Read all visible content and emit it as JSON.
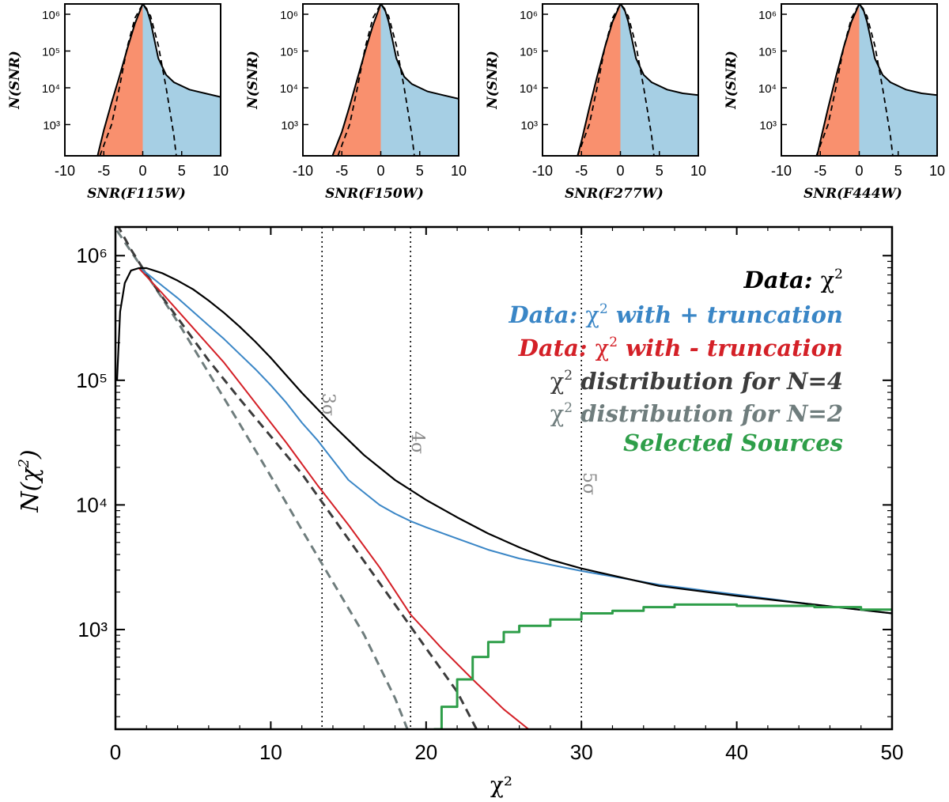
{
  "chart_data": [
    {
      "type": "area",
      "panel": "SNR(F115W)",
      "xlabel": "SNR(F115W)",
      "ylabel": "N(SNR)",
      "xlim": [
        -10,
        10
      ],
      "ylim_log10": [
        2.15,
        6.28
      ],
      "xticks": [
        -10,
        -5,
        0,
        5,
        10
      ],
      "xtick_labels": [
        "-10",
        "-5",
        "0",
        "5",
        "10"
      ],
      "yticks_log10": [
        3,
        4,
        5,
        6
      ],
      "ytick_labels": [
        "10³",
        "10⁴",
        "10⁵",
        "10⁶"
      ],
      "series": [
        {
          "name": "data (negative SNR, filled)",
          "color": "#f9906e",
          "fill": true,
          "x": [
            -5.8,
            -5,
            -4,
            -3,
            -2,
            -1,
            0
          ],
          "log10_y": [
            2.15,
            2.85,
            3.6,
            4.3,
            5.05,
            5.75,
            6.28
          ]
        },
        {
          "name": "data (positive SNR, filled)",
          "color": "#a6cfe4",
          "fill": true,
          "x": [
            0,
            0.5,
            1,
            1.5,
            2,
            3,
            4,
            6,
            8,
            10
          ],
          "log10_y": [
            6.28,
            6.15,
            5.8,
            5.3,
            4.8,
            4.35,
            4.15,
            3.95,
            3.85,
            3.75
          ]
        },
        {
          "name": "Gaussian fit",
          "color": "#000000",
          "style": "dashed",
          "x": [
            -5.5,
            -4,
            -3,
            -2,
            -1,
            0,
            1,
            2,
            3,
            4,
            4.3
          ],
          "log10_y": [
            2.15,
            3.0,
            4.0,
            5.1,
            5.9,
            6.28,
            5.95,
            5.15,
            4.0,
            2.7,
            2.15
          ]
        }
      ]
    },
    {
      "type": "area",
      "panel": "SNR(F150W)",
      "xlabel": "SNR(F150W)",
      "ylabel": "N(SNR)",
      "xlim": [
        -10,
        10
      ],
      "ylim_log10": [
        2.15,
        6.28
      ],
      "xticks": [
        -10,
        -5,
        0,
        5,
        10
      ],
      "xtick_labels": [
        "-10",
        "-5",
        "0",
        "5",
        "10"
      ],
      "yticks_log10": [
        3,
        4,
        5,
        6
      ],
      "ytick_labels": [
        "10³",
        "10⁴",
        "10⁵",
        "10⁶"
      ],
      "series": [
        {
          "name": "data (negative SNR, filled)",
          "color": "#f9906e",
          "fill": true,
          "x": [
            -6.2,
            -5,
            -4,
            -3,
            -2,
            -1,
            0
          ],
          "log10_y": [
            2.15,
            2.8,
            3.5,
            4.25,
            5.0,
            5.7,
            6.28
          ]
        },
        {
          "name": "data (positive SNR, filled)",
          "color": "#a6cfe4",
          "fill": true,
          "x": [
            0,
            0.5,
            1,
            1.5,
            2,
            3,
            4,
            6,
            8,
            10
          ],
          "log10_y": [
            6.28,
            6.15,
            5.8,
            5.3,
            4.8,
            4.3,
            4.1,
            3.9,
            3.8,
            3.7
          ]
        },
        {
          "name": "Gaussian fit",
          "color": "#000000",
          "style": "dashed",
          "x": [
            -5.5,
            -4,
            -3,
            -2,
            -1,
            0,
            1,
            2,
            3,
            4,
            4.3
          ],
          "log10_y": [
            2.15,
            3.0,
            4.0,
            5.1,
            5.9,
            6.28,
            5.95,
            5.15,
            4.0,
            2.7,
            2.15
          ]
        }
      ]
    },
    {
      "type": "area",
      "panel": "SNR(F277W)",
      "xlabel": "SNR(F277W)",
      "ylabel": "N(SNR)",
      "xlim": [
        -10,
        10
      ],
      "ylim_log10": [
        2.15,
        6.28
      ],
      "xticks": [
        -10,
        -5,
        0,
        5,
        10
      ],
      "xtick_labels": [
        "-10",
        "-5",
        "0",
        "5",
        "10"
      ],
      "yticks_log10": [
        3,
        4,
        5,
        6
      ],
      "ytick_labels": [
        "10³",
        "10⁴",
        "10⁵",
        "10⁶"
      ],
      "series": [
        {
          "name": "data (negative SNR, filled)",
          "color": "#f9906e",
          "fill": true,
          "x": [
            -5.5,
            -5,
            -4,
            -3,
            -2,
            -1,
            0
          ],
          "log10_y": [
            2.15,
            2.55,
            3.45,
            4.3,
            5.1,
            5.8,
            6.28
          ]
        },
        {
          "name": "data (positive SNR, filled)",
          "color": "#a6cfe4",
          "fill": true,
          "x": [
            0,
            0.5,
            1,
            1.5,
            2,
            3,
            4,
            6,
            8,
            10
          ],
          "log10_y": [
            6.28,
            6.15,
            5.8,
            5.3,
            4.8,
            4.35,
            4.15,
            3.95,
            3.85,
            3.8
          ]
        },
        {
          "name": "Gaussian fit",
          "color": "#000000",
          "style": "dashed",
          "x": [
            -5.5,
            -4,
            -3,
            -2,
            -1,
            0,
            1,
            2,
            3,
            4,
            4.3
          ],
          "log10_y": [
            2.15,
            3.0,
            4.0,
            5.1,
            5.9,
            6.28,
            5.95,
            5.15,
            4.0,
            2.7,
            2.15
          ]
        }
      ]
    },
    {
      "type": "area",
      "panel": "SNR(F444W)",
      "xlabel": "SNR(F444W)",
      "ylabel": "N(SNR)",
      "xlim": [
        -10,
        10
      ],
      "ylim_log10": [
        2.15,
        6.28
      ],
      "xticks": [
        -10,
        -5,
        0,
        5,
        10
      ],
      "xtick_labels": [
        "-10",
        "-5",
        "0",
        "5",
        "10"
      ],
      "yticks_log10": [
        3,
        4,
        5,
        6
      ],
      "ytick_labels": [
        "10³",
        "10⁴",
        "10⁵",
        "10⁶"
      ],
      "series": [
        {
          "name": "data (negative SNR, filled)",
          "color": "#f9906e",
          "fill": true,
          "x": [
            -5.4,
            -5,
            -4,
            -3,
            -2,
            -1,
            0
          ],
          "log10_y": [
            2.15,
            2.55,
            3.45,
            4.3,
            5.1,
            5.8,
            6.28
          ]
        },
        {
          "name": "data (positive SNR, filled)",
          "color": "#a6cfe4",
          "fill": true,
          "x": [
            0,
            0.5,
            1,
            1.5,
            2,
            3,
            4,
            6,
            8,
            10
          ],
          "log10_y": [
            6.28,
            6.15,
            5.8,
            5.3,
            4.8,
            4.35,
            4.15,
            3.95,
            3.85,
            3.8
          ]
        },
        {
          "name": "Gaussian fit",
          "color": "#000000",
          "style": "dashed",
          "x": [
            -5.5,
            -4,
            -3,
            -2,
            -1,
            0,
            1,
            2,
            3,
            4,
            4.3
          ],
          "log10_y": [
            2.15,
            3.0,
            4.0,
            5.1,
            5.9,
            6.28,
            5.95,
            5.15,
            4.0,
            2.7,
            2.15
          ]
        }
      ]
    },
    {
      "type": "line",
      "panel": "main",
      "xlabel": "χ²",
      "ylabel_base": "N(χ",
      "ylabel_sup": "2",
      "ylabel_end": ")",
      "xlim": [
        0,
        50
      ],
      "ylim_log10": [
        2.2,
        6.23
      ],
      "xticks": [
        0,
        10,
        20,
        30,
        40,
        50
      ],
      "xtick_labels": [
        "0",
        "10",
        "20",
        "30",
        "40",
        "50"
      ],
      "yticks_log10": [
        3,
        4,
        5,
        6
      ],
      "ytick_labels": [
        "10³",
        "10⁴",
        "10⁵",
        "10⁶"
      ],
      "vlines": [
        {
          "x": 13.3,
          "label": "3σ"
        },
        {
          "x": 19.0,
          "label": "4σ"
        },
        {
          "x": 30.0,
          "label": "5σ"
        }
      ],
      "legend": [
        {
          "prefix": "Data: ",
          "chi": "χ",
          "sup": "2",
          "suffix": "",
          "color": "#000000"
        },
        {
          "prefix": "Data: ",
          "chi": "χ",
          "sup": "2",
          "suffix": " with + truncation",
          "color": "#3a86c6"
        },
        {
          "prefix": "Data: ",
          "chi": "χ",
          "sup": "2",
          "suffix": " with - truncation",
          "color": "#d42027"
        },
        {
          "prefix": "",
          "chi": "χ",
          "sup": "2",
          "suffix": " distribution for N=4",
          "color": "#3c3c3c"
        },
        {
          "prefix": "",
          "chi": "χ",
          "sup": "2",
          "suffix": " distribution for N=2",
          "color": "#6f7d7d"
        },
        {
          "prefix": "Selected Sources",
          "chi": "",
          "sup": "",
          "suffix": "",
          "color": "#2e9e49"
        }
      ],
      "series": [
        {
          "name": "Data: χ²",
          "color": "#000000",
          "style": "solid",
          "x": [
            0.1,
            0.3,
            0.6,
            1.0,
            1.5,
            2.0,
            3,
            4,
            5,
            6,
            7,
            8,
            9,
            10,
            11,
            12,
            13,
            14,
            15,
            16,
            17,
            18,
            19,
            20,
            22,
            24,
            26,
            28,
            30,
            35,
            40,
            45,
            50
          ],
          "log10_y": [
            5.0,
            5.55,
            5.78,
            5.88,
            5.9,
            5.9,
            5.86,
            5.8,
            5.73,
            5.64,
            5.54,
            5.43,
            5.31,
            5.18,
            5.04,
            4.9,
            4.77,
            4.64,
            4.52,
            4.4,
            4.3,
            4.2,
            4.12,
            4.04,
            3.9,
            3.77,
            3.66,
            3.56,
            3.49,
            3.35,
            3.27,
            3.2,
            3.13
          ]
        },
        {
          "name": "Data: χ² with + truncation",
          "color": "#3a86c6",
          "style": "solid",
          "x": [
            1.5,
            2,
            3,
            4,
            5,
            6,
            7,
            8,
            9,
            10,
            11,
            12,
            13,
            14,
            15,
            16,
            17,
            18,
            19,
            20,
            22,
            24,
            26,
            28,
            30,
            35,
            40,
            45,
            50
          ],
          "log10_y": [
            5.9,
            5.86,
            5.76,
            5.66,
            5.55,
            5.44,
            5.33,
            5.21,
            5.09,
            4.96,
            4.82,
            4.66,
            4.52,
            4.36,
            4.2,
            4.1,
            4.0,
            3.93,
            3.87,
            3.82,
            3.73,
            3.64,
            3.57,
            3.52,
            3.47,
            3.36,
            3.28,
            3.2,
            3.13
          ]
        },
        {
          "name": "Data: χ² with - truncation",
          "color": "#d42027",
          "style": "solid",
          "x": [
            1.5,
            3,
            5,
            7,
            9,
            11,
            13,
            15,
            17,
            19,
            21,
            23,
            25,
            26.6
          ],
          "log10_y": [
            5.9,
            5.7,
            5.42,
            5.14,
            4.82,
            4.5,
            4.16,
            3.84,
            3.5,
            3.12,
            2.85,
            2.6,
            2.36,
            2.2
          ]
        },
        {
          "name": "χ² distribution for N=4",
          "color": "#3c3c3c",
          "style": "dashed",
          "x": [
            0.1,
            1,
            2,
            3,
            4,
            5,
            6,
            8,
            10,
            12,
            14,
            16,
            18,
            20,
            22,
            23.25
          ],
          "log10_y": [
            6.25,
            6.05,
            5.85,
            5.67,
            5.5,
            5.33,
            5.16,
            4.85,
            4.55,
            4.25,
            3.9,
            3.55,
            3.2,
            2.85,
            2.5,
            2.2
          ]
        },
        {
          "name": "χ² distribution for N=2",
          "color": "#6f7d7d",
          "style": "dashed",
          "x": [
            0.1,
            2,
            4,
            6,
            8,
            10,
            12,
            14,
            16,
            18,
            18.8
          ],
          "log10_y": [
            6.2,
            5.85,
            5.47,
            5.06,
            4.65,
            4.23,
            3.8,
            3.38,
            2.96,
            2.45,
            2.2
          ]
        },
        {
          "name": "Selected Sources",
          "color": "#2e9e49",
          "style": "step",
          "x": [
            20.5,
            21,
            22,
            23,
            24,
            25,
            26,
            28,
            30,
            32,
            34,
            36,
            38,
            40,
            42,
            45,
            48,
            50
          ],
          "log10_y": [
            2.2,
            2.38,
            2.6,
            2.78,
            2.9,
            2.98,
            3.03,
            3.08,
            3.13,
            3.15,
            3.18,
            3.2,
            3.2,
            3.19,
            3.19,
            3.18,
            3.16,
            3.15
          ]
        }
      ]
    }
  ]
}
